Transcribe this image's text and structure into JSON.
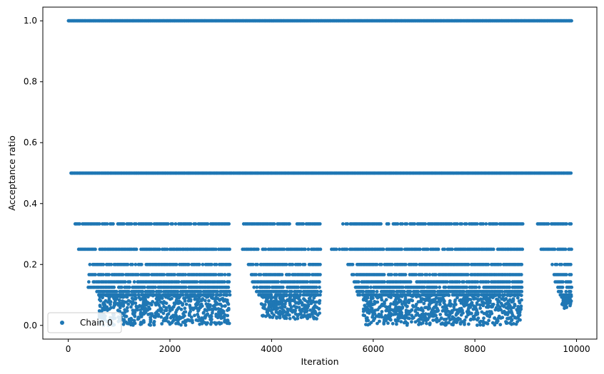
{
  "chart_data": {
    "type": "scatter",
    "xlabel": "Iteration",
    "ylabel": "Acceptance ratio",
    "xlim": [
      -500,
      10400
    ],
    "ylim": [
      -0.045,
      1.045
    ],
    "x_ticks": [
      0,
      2000,
      4000,
      6000,
      8000,
      10000
    ],
    "x_tick_labels": [
      "0",
      "2000",
      "4000",
      "6000",
      "8000",
      "10000"
    ],
    "y_ticks": [
      0.0,
      0.2,
      0.4,
      0.6,
      0.8,
      1.0
    ],
    "y_tick_labels": [
      "0.0",
      "0.2",
      "0.4",
      "0.6",
      "0.8",
      "1.0"
    ],
    "grid": false,
    "legend_position": "lower-left",
    "marker_color": "#1f77b4",
    "series": [
      {
        "name": "Chain 0",
        "n_iterations": 9900,
        "discrete_levels": [
          1.0,
          0.5,
          0.3333,
          0.25,
          0.2,
          0.1667,
          0.1429,
          0.125,
          0.1111,
          0.1
        ],
        "bands": [
          {
            "y": 1.0,
            "x_range": [
              0,
              9900
            ]
          },
          {
            "y": 0.5,
            "x_range": [
              50,
              9900
            ]
          },
          {
            "y": 0.3333,
            "x_ranges": [
              [
                130,
                3180
              ],
              [
                3450,
                4960
              ],
              [
                5400,
                8960
              ],
              [
                9230,
                9900
              ]
            ]
          },
          {
            "y": 0.25,
            "x_ranges": [
              [
                200,
                3180
              ],
              [
                3400,
                4960
              ],
              [
                5180,
                8940
              ],
              [
                9300,
                9900
              ]
            ]
          },
          {
            "y": 0.2,
            "x_ranges": [
              [
                420,
                3180
              ],
              [
                3540,
                4960
              ],
              [
                5500,
                8920
              ],
              [
                9520,
                9900
              ]
            ]
          },
          {
            "y": 0.1667,
            "x_ranges": [
              [
                410,
                3180
              ],
              [
                3600,
                4960
              ],
              [
                5580,
                8920
              ],
              [
                9560,
                9900
              ]
            ]
          },
          {
            "y": 0.1429,
            "x_ranges": [
              [
                400,
                3180
              ],
              [
                3620,
                4960
              ],
              [
                5620,
                8920
              ],
              [
                9580,
                9900
              ]
            ]
          },
          {
            "y": 0.125,
            "x_ranges": [
              [
                390,
                3180
              ],
              [
                3650,
                4960
              ],
              [
                5650,
                8920
              ],
              [
                9600,
                9900
              ]
            ]
          },
          {
            "y": 0.1111,
            "x_ranges": [
              [
                560,
                3180
              ],
              [
                3700,
                4960
              ],
              [
                5680,
                8920
              ],
              [
                9640,
                9900
              ]
            ]
          },
          {
            "y": 0.1,
            "x_ranges": [
              [
                600,
                3180
              ],
              [
                3750,
                4960
              ],
              [
                5700,
                8920
              ],
              [
                9680,
                9900
              ]
            ]
          }
        ],
        "low_clusters": [
          {
            "x_range": [
              600,
              3180
            ],
            "y_range": [
              0.0,
              0.1
            ]
          },
          {
            "x_range": [
              3800,
              4960
            ],
            "y_range": [
              0.02,
              0.1
            ]
          },
          {
            "x_range": [
              5800,
              8920
            ],
            "y_range": [
              0.0,
              0.1
            ]
          },
          {
            "x_range": [
              9700,
              9900
            ],
            "y_range": [
              0.05,
              0.1
            ]
          }
        ]
      }
    ]
  },
  "legend": {
    "label": "Chain 0"
  }
}
